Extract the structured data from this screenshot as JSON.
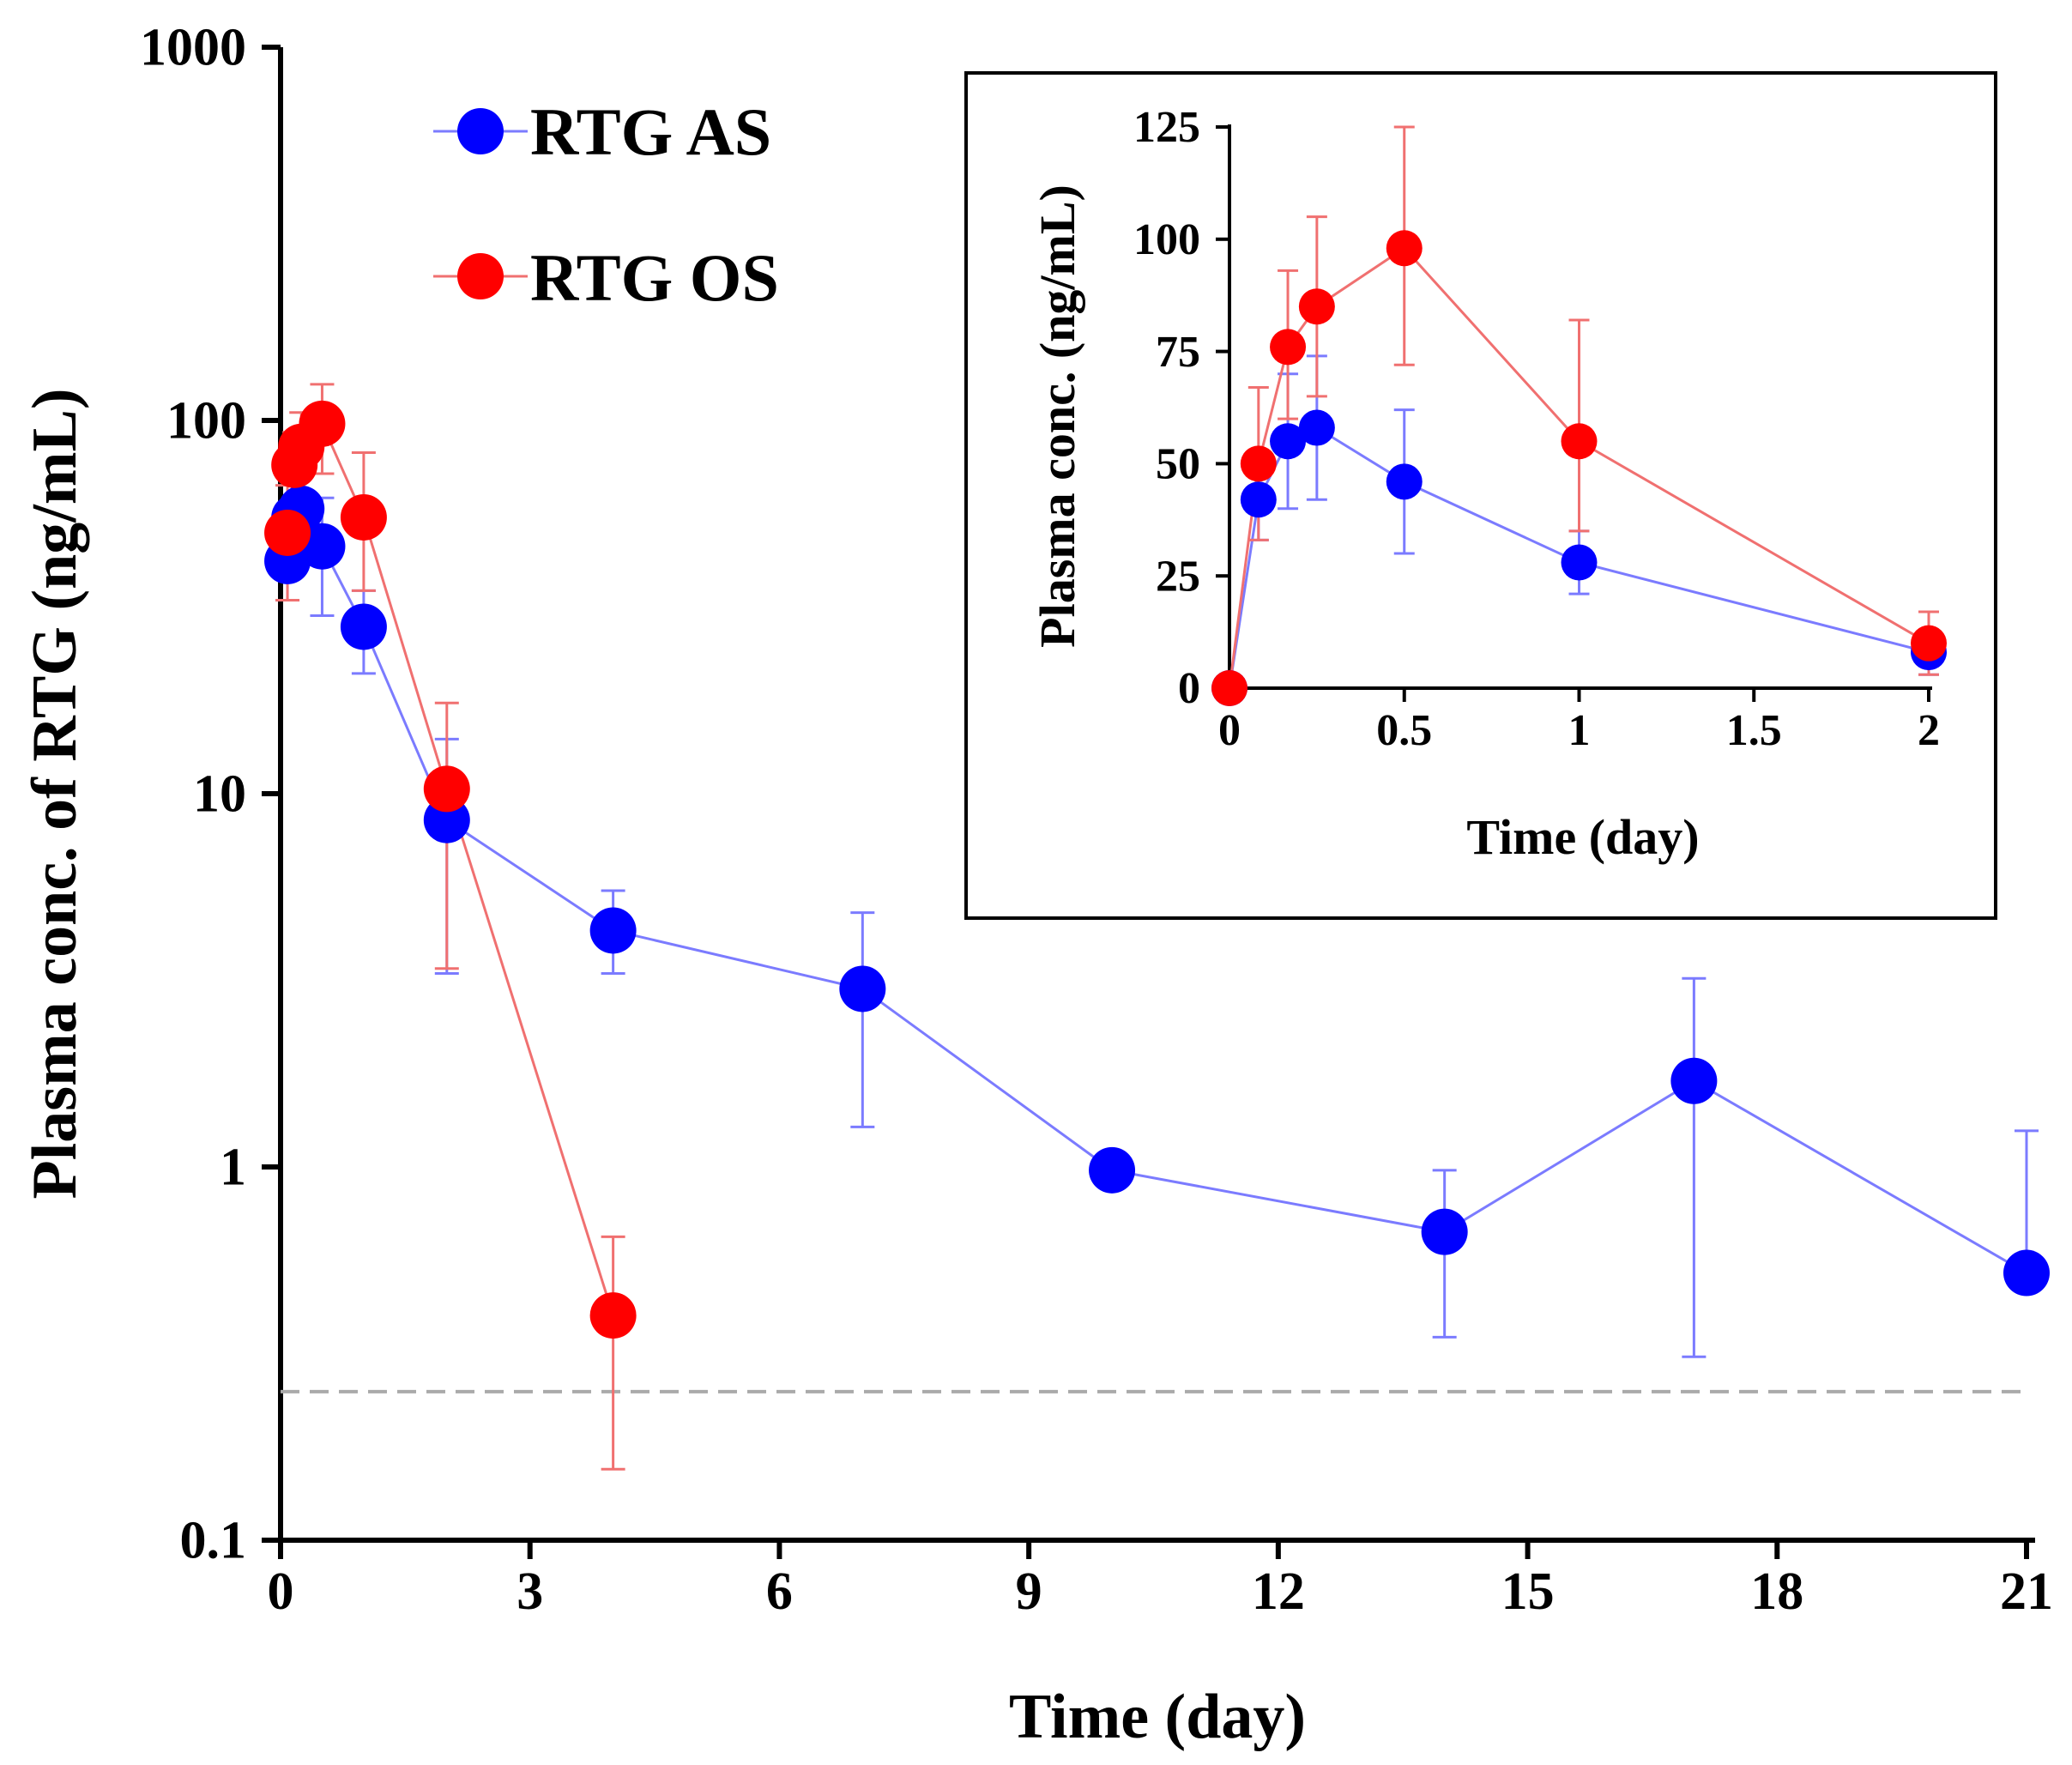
{
  "chart_data": [
    {
      "type": "scatter",
      "id": "main",
      "xlabel": "Time (day)",
      "ylabel": "Plasma conc. of RTG (ng/mL)",
      "xlim": [
        0,
        21
      ],
      "ylim": [
        0.1,
        1000
      ],
      "yscale": "log",
      "xticks": [
        0,
        3,
        6,
        9,
        12,
        15,
        18,
        21
      ],
      "xtick_labels": [
        "0",
        "3",
        "6",
        "9",
        "12",
        "15",
        "18",
        "21"
      ],
      "yticks": [
        0.1,
        1,
        10,
        100,
        1000
      ],
      "ytick_labels": [
        "0.1",
        "1",
        "10",
        "100",
        "1000"
      ],
      "reference_line": {
        "y": 0.25,
        "style": "dashed",
        "color": "#aaaaaa"
      },
      "legend": {
        "placement": "top-left",
        "entries": [
          "RTG AS",
          "RTG OS"
        ]
      },
      "series": [
        {
          "name": "RTG AS",
          "color": "#0000ff",
          "line_color": "#7b7bff",
          "x": [
            0.083,
            0.167,
            0.25,
            0.5,
            1,
            2,
            4,
            7,
            10,
            14,
            17,
            21
          ],
          "y": [
            42,
            55,
            58,
            46,
            28,
            8.5,
            4.3,
            3.0,
            0.98,
            0.67,
            1.7,
            0.52
          ],
          "err_upper": [
            51,
            70,
            74,
            62,
            35,
            14,
            5.5,
            4.8,
            0.98,
            0.98,
            3.2,
            1.25
          ],
          "err_lower": [
            33,
            40,
            42,
            30,
            21,
            3.3,
            3.3,
            1.28,
            0.98,
            0.35,
            0.31,
            0.52
          ]
        },
        {
          "name": "RTG OS",
          "color": "#ff0000",
          "line_color": "#f07070",
          "x": [
            0.083,
            0.167,
            0.25,
            0.5,
            1,
            2,
            4
          ],
          "y": [
            50,
            76,
            85,
            98,
            55,
            10.3,
            0.4
          ],
          "err_upper": [
            67,
            93,
            105,
            125,
            82,
            17.5,
            0.65
          ],
          "err_lower": [
            33,
            60,
            65,
            72,
            35,
            3.4,
            0.155
          ]
        }
      ]
    },
    {
      "type": "scatter",
      "id": "inset",
      "xlabel": "Time (day)",
      "ylabel": "Plasma conc. (ng/mL)",
      "xlim": [
        0,
        2
      ],
      "ylim": [
        0,
        125
      ],
      "yscale": "linear",
      "xticks": [
        0,
        0.5,
        1,
        1.5,
        2
      ],
      "xtick_labels": [
        "0",
        "0.5",
        "1",
        "1.5",
        "2"
      ],
      "yticks": [
        0,
        25,
        50,
        75,
        100,
        125
      ],
      "ytick_labels": [
        "0",
        "25",
        "50",
        "75",
        "100",
        "125"
      ],
      "series": [
        {
          "name": "RTG AS",
          "color": "#0000ff",
          "line_color": "#7b7bff",
          "x": [
            0,
            0.083,
            0.167,
            0.25,
            0.5,
            1,
            2
          ],
          "y": [
            0,
            42,
            55,
            58,
            46,
            28,
            8
          ],
          "err_upper": [
            0,
            51,
            70,
            74,
            62,
            35,
            13
          ],
          "err_lower": [
            0,
            33,
            40,
            42,
            30,
            21,
            3
          ]
        },
        {
          "name": "RTG OS",
          "color": "#ff0000",
          "line_color": "#f07070",
          "x": [
            0,
            0.083,
            0.167,
            0.25,
            0.5,
            1,
            2
          ],
          "y": [
            0,
            50,
            76,
            85,
            98,
            55,
            10
          ],
          "err_upper": [
            0,
            67,
            93,
            105,
            125,
            82,
            17
          ],
          "err_lower": [
            0,
            33,
            60,
            65,
            72,
            35,
            3
          ]
        }
      ]
    }
  ]
}
